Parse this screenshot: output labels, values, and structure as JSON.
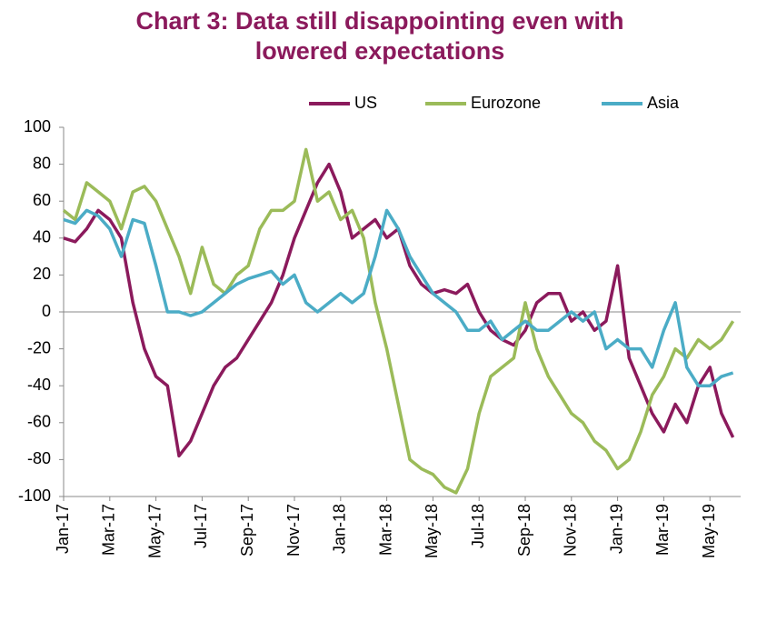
{
  "chart_data": {
    "type": "line",
    "title": [
      "Chart 3: Data still disappointing even with",
      "lowered expectations"
    ],
    "categories": [
      "Jan-17",
      null,
      null,
      null,
      "Mar-17",
      null,
      null,
      null,
      "May-17",
      null,
      null,
      null,
      "Jul-17",
      null,
      null,
      null,
      "Sep-17",
      null,
      null,
      null,
      "Nov-17",
      null,
      null,
      null,
      "Jan-18",
      null,
      null,
      null,
      "Mar-18",
      null,
      null,
      null,
      "May-18",
      null,
      null,
      null,
      "Jul-18",
      null,
      null,
      null,
      "Sep-18",
      null,
      null,
      null,
      "Nov-18",
      null,
      null,
      null,
      "Jan-19",
      null,
      null,
      null,
      "Mar-19",
      null,
      null,
      null,
      "May-19",
      null,
      null
    ],
    "series": [
      {
        "name": "US",
        "color": "#8b1a5c",
        "values": [
          40,
          38,
          45,
          55,
          50,
          40,
          5,
          -20,
          -35,
          -40,
          -78,
          -70,
          -55,
          -40,
          -30,
          -25,
          -15,
          -5,
          5,
          20,
          40,
          55,
          70,
          80,
          65,
          40,
          45,
          50,
          40,
          45,
          25,
          15,
          10,
          12,
          10,
          15,
          0,
          -10,
          -15,
          -18,
          -10,
          5,
          10,
          10,
          -5,
          0,
          -10,
          -5,
          25,
          -25,
          -40,
          -55,
          -65,
          -50,
          -60,
          -40,
          -30,
          -55,
          -68
        ]
      },
      {
        "name": "Eurozone",
        "color": "#9bbb59",
        "values": [
          55,
          50,
          70,
          65,
          60,
          45,
          65,
          68,
          60,
          45,
          30,
          10,
          35,
          15,
          10,
          20,
          25,
          45,
          55,
          55,
          60,
          88,
          60,
          65,
          50,
          55,
          40,
          5,
          -20,
          -50,
          -80,
          -85,
          -88,
          -95,
          -98,
          -85,
          -55,
          -35,
          -30,
          -25,
          5,
          -20,
          -35,
          -45,
          -55,
          -60,
          -70,
          -75,
          -85,
          -80,
          -65,
          -45,
          -35,
          -20,
          -25,
          -15,
          -20,
          -15,
          -5
        ]
      },
      {
        "name": "Asia",
        "color": "#4bacc6",
        "values": [
          50,
          48,
          55,
          52,
          45,
          30,
          50,
          48,
          25,
          0,
          0,
          -2,
          0,
          5,
          10,
          15,
          18,
          20,
          22,
          15,
          20,
          5,
          0,
          5,
          10,
          5,
          10,
          30,
          55,
          45,
          30,
          20,
          10,
          5,
          0,
          -10,
          -10,
          -5,
          -15,
          -10,
          -5,
          -10,
          -10,
          -5,
          0,
          -5,
          0,
          -20,
          -15,
          -20,
          -20,
          -30,
          -10,
          5,
          -30,
          -40,
          -40,
          -35,
          -33
        ]
      }
    ],
    "ylim": [
      -100,
      100
    ],
    "yticks": [
      -100,
      -80,
      -60,
      -40,
      -20,
      0,
      20,
      40,
      60,
      80,
      100
    ]
  }
}
